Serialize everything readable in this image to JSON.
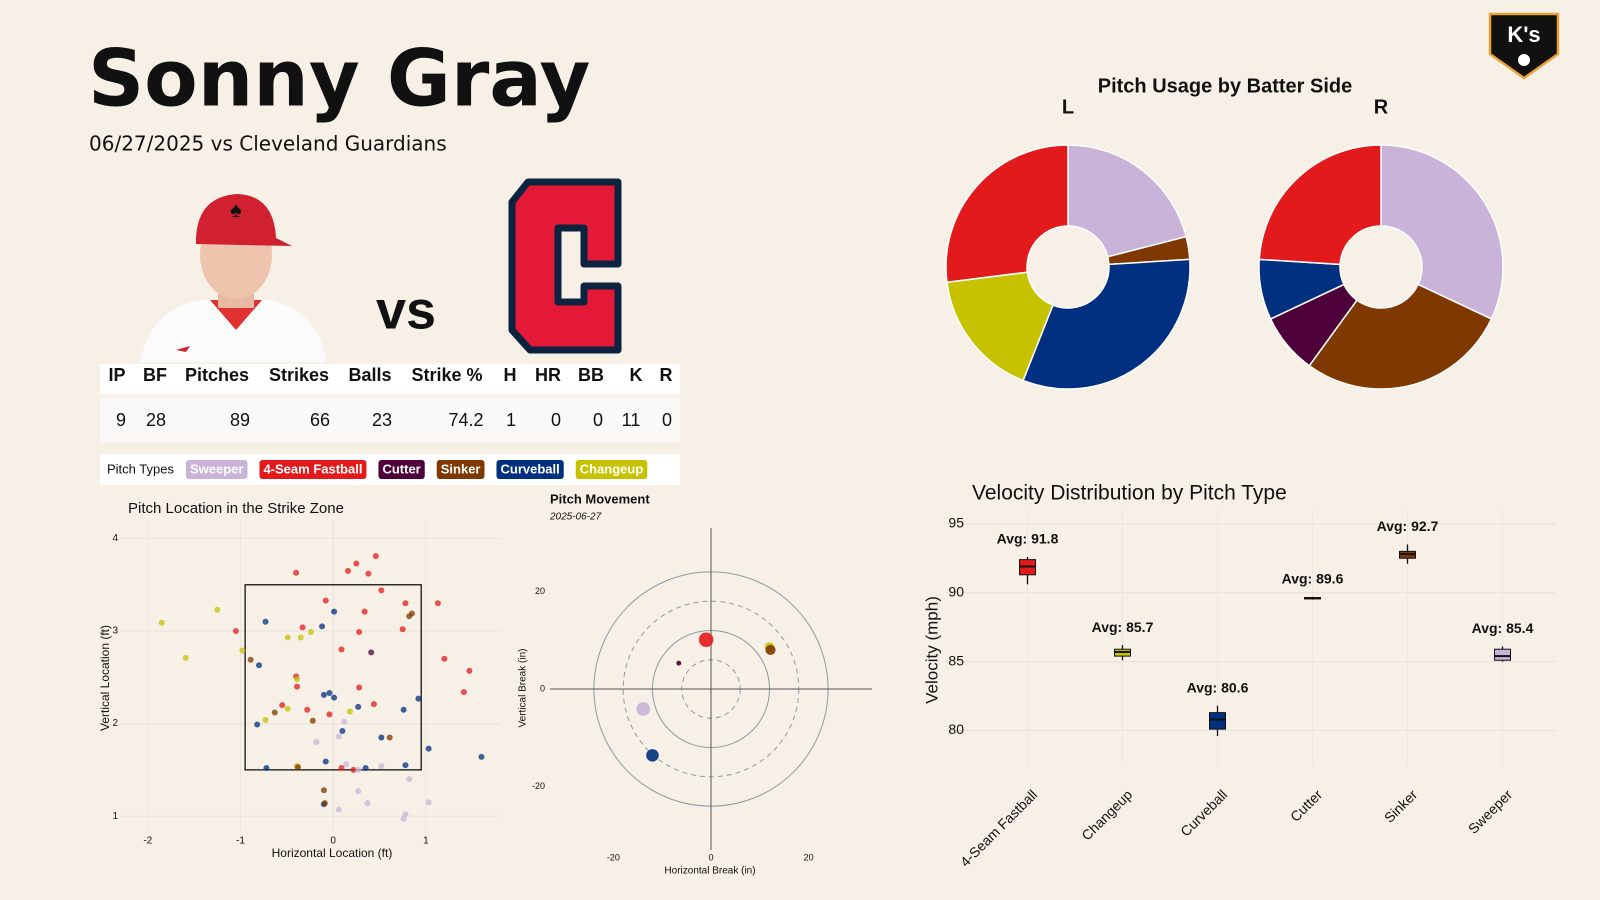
{
  "header": {
    "title": "Sonny Gray",
    "subtitle": "06/27/2025 vs Cleveland Guardians",
    "versus": "vs",
    "logo": "K's"
  },
  "table": {
    "columns": [
      "IP",
      "BF",
      "Pitches",
      "Strikes",
      "Balls",
      "Strike %",
      "H",
      "HR",
      "BB",
      "K",
      "R"
    ],
    "rows": [
      [
        9,
        28,
        89,
        66,
        23,
        74.2,
        1,
        0,
        0,
        11,
        0
      ]
    ]
  },
  "legend": {
    "label": "Pitch Types",
    "items": [
      {
        "name": "Sweeper",
        "color": "#c9b3d9"
      },
      {
        "name": "4-Seam Fastball",
        "color": "#e31a1c"
      },
      {
        "name": "Cutter",
        "color": "#4d0039"
      },
      {
        "name": "Sinker",
        "color": "#7f3800"
      },
      {
        "name": "Curveball",
        "color": "#00307f"
      },
      {
        "name": "Changeup",
        "color": "#c6c200"
      }
    ]
  },
  "chart_data": [
    {
      "type": "donut",
      "title": "Pitch Usage by Batter Side",
      "panels": [
        {
          "name": "L",
          "categories": [
            "Sweeper",
            "Sinker",
            "Curveball",
            "Changeup",
            "4-Seam Fastball"
          ],
          "values": [
            21,
            3,
            32,
            17,
            27
          ],
          "colors": [
            "#c9b3d9",
            "#7f3800",
            "#00307f",
            "#c6c200",
            "#e31a1c"
          ]
        },
        {
          "name": "R",
          "categories": [
            "Sweeper",
            "Sinker",
            "Cutter",
            "Curveball",
            "4-Seam Fastball"
          ],
          "values": [
            32,
            28,
            8,
            8,
            24
          ],
          "colors": [
            "#c9b3d9",
            "#7f3800",
            "#4d0039",
            "#00307f",
            "#e31a1c"
          ]
        }
      ]
    },
    {
      "type": "scatter",
      "title": "Pitch Location in the Strike Zone",
      "xlabel": "Horizontal Location (ft)",
      "ylabel": "Vertical Location (ft)",
      "xlim": [
        -2.3,
        1.8
      ],
      "ylim": [
        0.85,
        4.2
      ],
      "xticks": [
        -2,
        -1,
        0,
        1
      ],
      "yticks": [
        1,
        2,
        3,
        4
      ],
      "grid": true,
      "zone": {
        "x": [
          -0.95,
          0.95
        ],
        "y": [
          1.5,
          3.5
        ]
      },
      "series": [
        {
          "name": "4-Seam Fastball",
          "color": "#e31a1c",
          "x": [
            0.46,
            0.16,
            0.25,
            0.38,
            -0.4,
            0.52,
            -0.08,
            0.34,
            0.78,
            -1.05,
            -0.33,
            0.28,
            0.09,
            0.75,
            1.13,
            1.2,
            1.47,
            1.41,
            -0.4,
            -0.39,
            -0.55,
            -0.04,
            0.44,
            -0.28,
            0.28,
            0.22,
            0.09
          ],
          "y": [
            3.81,
            3.65,
            3.73,
            3.62,
            3.63,
            3.44,
            3.33,
            3.21,
            3.3,
            3.0,
            3.04,
            2.99,
            2.8,
            3.02,
            3.3,
            2.7,
            2.57,
            2.34,
            2.51,
            2.4,
            2.2,
            2.1,
            2.21,
            2.15,
            2.39,
            1.5,
            1.52
          ]
        },
        {
          "name": "Curveball",
          "color": "#00307f",
          "x": [
            -0.73,
            -0.12,
            0.01,
            -0.8,
            -0.1,
            -0.04,
            0.01,
            0.27,
            -0.82,
            0.1,
            0.52,
            0.92,
            0.76,
            1.03,
            1.6,
            -0.72,
            -0.08,
            0.35,
            0.78,
            -0.1
          ],
          "y": [
            3.1,
            3.05,
            3.21,
            2.63,
            2.31,
            2.33,
            2.28,
            2.18,
            1.99,
            1.92,
            1.85,
            2.27,
            2.15,
            1.73,
            1.64,
            1.52,
            1.59,
            1.52,
            1.55,
            1.13
          ]
        },
        {
          "name": "Changeup",
          "color": "#c6c200",
          "x": [
            -1.85,
            -1.59,
            -1.25,
            -0.98,
            -0.49,
            -0.35,
            -0.24,
            -0.39,
            -0.73,
            -0.49,
            0.18,
            -0.39
          ],
          "y": [
            3.09,
            2.71,
            3.23,
            2.79,
            2.93,
            2.93,
            2.99,
            2.48,
            2.04,
            2.16,
            2.13,
            1.54
          ]
        },
        {
          "name": "Sweeper",
          "color": "#c9b3d9",
          "x": [
            -0.18,
            0.06,
            0.12,
            0.14,
            0.27,
            0.37,
            0.06,
            0.82,
            1.03,
            0.78,
            0.76,
            0.27,
            0.52
          ],
          "y": [
            1.8,
            1.86,
            2.02,
            1.56,
            1.27,
            1.14,
            1.07,
            1.4,
            1.15,
            1.02,
            0.97,
            1.5,
            1.54
          ]
        },
        {
          "name": "Sinker",
          "color": "#7f3800",
          "x": [
            0.82,
            0.85,
            -0.89,
            -0.63,
            -0.22,
            0.61,
            -0.38,
            -0.1,
            -0.09
          ],
          "y": [
            3.16,
            3.19,
            2.69,
            2.12,
            2.03,
            1.85,
            1.53,
            1.28,
            1.14
          ]
        },
        {
          "name": "Cutter",
          "color": "#4d0039",
          "x": [
            0.41
          ],
          "y": [
            2.77
          ]
        }
      ]
    },
    {
      "type": "bubble",
      "title": "Pitch Movement",
      "subtitle": "2025-06-27",
      "xlabel": "Horizontal Break (in)",
      "ylabel": "Vertical Break (in)",
      "xlim": [
        -33,
        33
      ],
      "ylim": [
        -33,
        33
      ],
      "xticks": [
        -20,
        0,
        20
      ],
      "yticks": [
        -20,
        0,
        20
      ],
      "series": [
        {
          "name": "4-Seam Fastball",
          "color": "#e31a1c",
          "x": [
            -1.0
          ],
          "y": [
            10.1
          ],
          "sizes": [
            27
          ]
        },
        {
          "name": "Cutter",
          "color": "#4d0039",
          "x": [
            -6.6
          ],
          "y": [
            5.3
          ],
          "sizes": [
            3
          ]
        },
        {
          "name": "Changeup",
          "color": "#c6c200",
          "x": [
            12.0
          ],
          "y": [
            8.6
          ],
          "sizes": [
            12
          ]
        },
        {
          "name": "Sinker",
          "color": "#7f3800",
          "x": [
            12.2
          ],
          "y": [
            8.0
          ],
          "sizes": [
            13
          ]
        },
        {
          "name": "Sweeper",
          "color": "#c9b3d9",
          "x": [
            -13.9
          ],
          "y": [
            -4.1
          ],
          "sizes": [
            24
          ]
        },
        {
          "name": "Curveball",
          "color": "#00307f",
          "x": [
            -12.0
          ],
          "y": [
            -13.6
          ],
          "sizes": [
            20
          ]
        }
      ]
    },
    {
      "type": "box",
      "title": "Velocity Distribution by Pitch Type",
      "ylabel": "Velocity (mph)",
      "categories": [
        "4-Seam Fastball",
        "Changeup",
        "Curveball",
        "Cutter",
        "Sinker",
        "Sweeper"
      ],
      "colors": [
        "#e31a1c",
        "#c6c200",
        "#00307f",
        "#4d0039",
        "#7f3800",
        "#c9b3d9"
      ],
      "ylim": [
        77.5,
        96
      ],
      "yticks": [
        80,
        85,
        90,
        95
      ],
      "grid": true,
      "min": [
        90.6,
        85.1,
        79.6,
        89.5,
        92.1,
        85.0
      ],
      "q1": [
        91.3,
        85.4,
        80.1,
        89.55,
        92.5,
        85.1
      ],
      "median": [
        91.9,
        85.7,
        80.8,
        89.6,
        92.8,
        85.4
      ],
      "q3": [
        92.4,
        85.9,
        81.3,
        89.65,
        93.0,
        85.9
      ],
      "max": [
        92.6,
        86.2,
        81.8,
        89.7,
        93.5,
        86.1
      ],
      "values": [
        91.8,
        85.7,
        80.6,
        89.6,
        92.7,
        85.4
      ],
      "value_labels": [
        "Avg: 91.8",
        "Avg: 85.7",
        "Avg: 80.6",
        "Avg: 89.6",
        "Avg: 92.7",
        "Avg: 85.4"
      ]
    }
  ]
}
